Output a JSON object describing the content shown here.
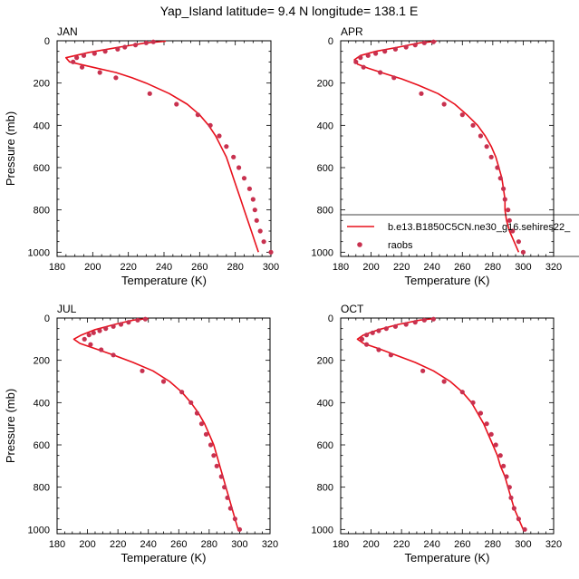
{
  "figure": {
    "title": "Yap_Island  latitude= 9.4 N longitude= 138.1 E"
  },
  "legend": {
    "model_label": "b.e13.B1850C5CN.ne30_g16.sehires22_",
    "obs_label": "raobs"
  },
  "colors": {
    "model_line": "#e8101c",
    "obs_marker": "#c8314f"
  },
  "chart_data": [
    {
      "type": "line",
      "title": "JAN",
      "xlabel": "Temperature (K)",
      "ylabel": "Pressure (mb)",
      "xlim": [
        180,
        300
      ],
      "ylim": [
        1020,
        0
      ],
      "xticks": [
        "180",
        "200",
        "220",
        "240",
        "260",
        "280",
        "300"
      ],
      "yticks": [
        "0",
        "200",
        "400",
        "600",
        "800",
        "1000"
      ],
      "series": [
        {
          "name": "b.e13.B1850C5CN.ne30_g16.sehires22_",
          "style": "line",
          "points": [
            [
              241,
              2
            ],
            [
              230,
              10
            ],
            [
              215,
              30
            ],
            [
              198,
              55
            ],
            [
              185,
              80
            ],
            [
              187,
              100
            ],
            [
              200,
              125
            ],
            [
              213,
              150
            ],
            [
              222,
              175
            ],
            [
              230,
              200
            ],
            [
              243,
              250
            ],
            [
              253,
              300
            ],
            [
              260,
              350
            ],
            [
              265,
              400
            ],
            [
              269,
              450
            ],
            [
              272,
              500
            ],
            [
              275,
              550
            ],
            [
              277,
              600
            ],
            [
              279,
              650
            ],
            [
              281,
              700
            ],
            [
              283,
              750
            ],
            [
              285,
              800
            ],
            [
              287,
              850
            ],
            [
              289,
              900
            ],
            [
              291,
              950
            ],
            [
              293,
              1000
            ]
          ]
        },
        {
          "name": "raobs",
          "style": "markers",
          "points": [
            [
              234,
              5
            ],
            [
              230,
              10
            ],
            [
              224,
              20
            ],
            [
              218,
              30
            ],
            [
              214,
              40
            ],
            [
              207,
              50
            ],
            [
              201,
              60
            ],
            [
              195,
              70
            ],
            [
              191,
              80
            ],
            [
              189,
              100
            ],
            [
              194,
              125
            ],
            [
              204,
              150
            ],
            [
              213,
              175
            ],
            [
              232,
              250
            ],
            [
              247,
              300
            ],
            [
              259,
              350
            ],
            [
              266,
              400
            ],
            [
              271,
              450
            ],
            [
              275,
              500
            ],
            [
              279,
              550
            ],
            [
              282,
              600
            ],
            [
              285,
              650
            ],
            [
              288,
              700
            ],
            [
              290,
              750
            ],
            [
              291,
              800
            ],
            [
              292,
              850
            ],
            [
              294,
              900
            ],
            [
              296,
              950
            ],
            [
              300,
              1000
            ]
          ]
        }
      ]
    },
    {
      "type": "line",
      "title": "APR",
      "xlabel": "Temperature (K)",
      "ylabel": "",
      "xlim": [
        180,
        320
      ],
      "ylim": [
        1020,
        0
      ],
      "xticks": [
        "180",
        "200",
        "220",
        "240",
        "260",
        "280",
        "300",
        "320"
      ],
      "yticks": [
        "0",
        "200",
        "400",
        "600",
        "800",
        "1000"
      ],
      "series": [
        {
          "name": "b.e13.B1850C5CN.ne30_g16.sehires22_",
          "style": "line",
          "points": [
            [
              243,
              2
            ],
            [
              232,
              10
            ],
            [
              218,
              30
            ],
            [
              203,
              50
            ],
            [
              193,
              70
            ],
            [
              189,
              90
            ],
            [
              191,
              110
            ],
            [
              198,
              130
            ],
            [
              209,
              155
            ],
            [
              220,
              180
            ],
            [
              231,
              210
            ],
            [
              244,
              250
            ],
            [
              255,
              300
            ],
            [
              263,
              350
            ],
            [
              270,
              400
            ],
            [
              275,
              450
            ],
            [
              279,
              500
            ],
            [
              282,
              550
            ],
            [
              284,
              600
            ],
            [
              286,
              650
            ],
            [
              287,
              700
            ],
            [
              288,
              750
            ],
            [
              288,
              800
            ],
            [
              289,
              850
            ],
            [
              291,
              900
            ],
            [
              294,
              950
            ],
            [
              297,
              1000
            ]
          ]
        },
        {
          "name": "raobs",
          "style": "markers",
          "points": [
            [
              241,
              5
            ],
            [
              235,
              10
            ],
            [
              229,
              20
            ],
            [
              223,
              30
            ],
            [
              216,
              40
            ],
            [
              209,
              50
            ],
            [
              203,
              60
            ],
            [
              198,
              70
            ],
            [
              193,
              80
            ],
            [
              190,
              100
            ],
            [
              195,
              125
            ],
            [
              206,
              150
            ],
            [
              215,
              175
            ],
            [
              233,
              250
            ],
            [
              248,
              300
            ],
            [
              260,
              350
            ],
            [
              267,
              400
            ],
            [
              272,
              450
            ],
            [
              276,
              500
            ],
            [
              279,
              550
            ],
            [
              283,
              600
            ],
            [
              285,
              650
            ],
            [
              287,
              700
            ],
            [
              288,
              750
            ],
            [
              290,
              800
            ],
            [
              291,
              850
            ],
            [
              293,
              900
            ],
            [
              297,
              950
            ],
            [
              300,
              1000
            ]
          ]
        }
      ]
    },
    {
      "type": "line",
      "title": "JUL",
      "xlabel": "Temperature (K)",
      "ylabel": "Pressure (mb)",
      "xlim": [
        180,
        320
      ],
      "ylim": [
        1020,
        0
      ],
      "xticks": [
        "180",
        "200",
        "220",
        "240",
        "260",
        "280",
        "300",
        "320"
      ],
      "yticks": [
        "0",
        "200",
        "400",
        "600",
        "800",
        "1000"
      ],
      "series": [
        {
          "name": "b.e13.B1850C5CN.ne30_g16.sehires22_",
          "style": "line",
          "points": [
            [
              240,
              2
            ],
            [
              230,
              10
            ],
            [
              218,
              30
            ],
            [
              205,
              55
            ],
            [
              196,
              80
            ],
            [
              191,
              100
            ],
            [
              195,
              120
            ],
            [
              205,
              145
            ],
            [
              217,
              175
            ],
            [
              230,
              210
            ],
            [
              243,
              250
            ],
            [
              254,
              300
            ],
            [
              262,
              350
            ],
            [
              268,
              400
            ],
            [
              273,
              450
            ],
            [
              277,
              500
            ],
            [
              280,
              550
            ],
            [
              283,
              600
            ],
            [
              285,
              650
            ],
            [
              287,
              700
            ],
            [
              289,
              750
            ],
            [
              291,
              800
            ],
            [
              293,
              850
            ],
            [
              295,
              900
            ],
            [
              297,
              950
            ],
            [
              299,
              1000
            ]
          ]
        },
        {
          "name": "raobs",
          "style": "markers",
          "points": [
            [
              238,
              5
            ],
            [
              233,
              10
            ],
            [
              227,
              20
            ],
            [
              222,
              30
            ],
            [
              217,
              40
            ],
            [
              212,
              50
            ],
            [
              208,
              60
            ],
            [
              204,
              70
            ],
            [
              201,
              80
            ],
            [
              198,
              100
            ],
            [
              202,
              125
            ],
            [
              209,
              150
            ],
            [
              217,
              175
            ],
            [
              236,
              250
            ],
            [
              250,
              300
            ],
            [
              262,
              350
            ],
            [
              268,
              400
            ],
            [
              272,
              450
            ],
            [
              275,
              500
            ],
            [
              278,
              550
            ],
            [
              281,
              600
            ],
            [
              283,
              650
            ],
            [
              285,
              700
            ],
            [
              288,
              750
            ],
            [
              290,
              800
            ],
            [
              292,
              850
            ],
            [
              294,
              900
            ],
            [
              297,
              950
            ],
            [
              300,
              1000
            ]
          ]
        }
      ]
    },
    {
      "type": "line",
      "title": "OCT",
      "xlabel": "Temperature (K)",
      "ylabel": "",
      "xlim": [
        180,
        320
      ],
      "ylim": [
        1020,
        0
      ],
      "xticks": [
        "180",
        "200",
        "220",
        "240",
        "260",
        "280",
        "300",
        "320"
      ],
      "yticks": [
        "0",
        "200",
        "400",
        "600",
        "800",
        "1000"
      ],
      "series": [
        {
          "name": "b.e13.B1850C5CN.ne30_g16.sehires22_",
          "style": "line",
          "points": [
            [
              242,
              2
            ],
            [
              232,
              10
            ],
            [
              218,
              30
            ],
            [
              205,
              55
            ],
            [
              195,
              80
            ],
            [
              191,
              100
            ],
            [
              195,
              120
            ],
            [
              205,
              145
            ],
            [
              216,
              175
            ],
            [
              229,
              210
            ],
            [
              241,
              250
            ],
            [
              252,
              300
            ],
            [
              260,
              350
            ],
            [
              266,
              400
            ],
            [
              270,
              450
            ],
            [
              274,
              500
            ],
            [
              277,
              550
            ],
            [
              280,
              600
            ],
            [
              283,
              650
            ],
            [
              285,
              700
            ],
            [
              288,
              750
            ],
            [
              290,
              800
            ],
            [
              292,
              850
            ],
            [
              294,
              900
            ],
            [
              297,
              950
            ],
            [
              300,
              1000
            ]
          ]
        },
        {
          "name": "raobs",
          "style": "markers",
          "points": [
            [
              241,
              5
            ],
            [
              235,
              10
            ],
            [
              229,
              20
            ],
            [
              223,
              30
            ],
            [
              216,
              40
            ],
            [
              210,
              50
            ],
            [
              205,
              60
            ],
            [
              201,
              70
            ],
            [
              197,
              80
            ],
            [
              194,
              100
            ],
            [
              197,
              125
            ],
            [
              205,
              150
            ],
            [
              213,
              175
            ],
            [
              234,
              250
            ],
            [
              248,
              300
            ],
            [
              260,
              350
            ],
            [
              267,
              400
            ],
            [
              272,
              450
            ],
            [
              276,
              500
            ],
            [
              279,
              550
            ],
            [
              282,
              600
            ],
            [
              285,
              650
            ],
            [
              287,
              700
            ],
            [
              289,
              750
            ],
            [
              291,
              800
            ],
            [
              292,
              850
            ],
            [
              294,
              900
            ],
            [
              297,
              950
            ],
            [
              301,
              1000
            ]
          ]
        }
      ]
    }
  ]
}
